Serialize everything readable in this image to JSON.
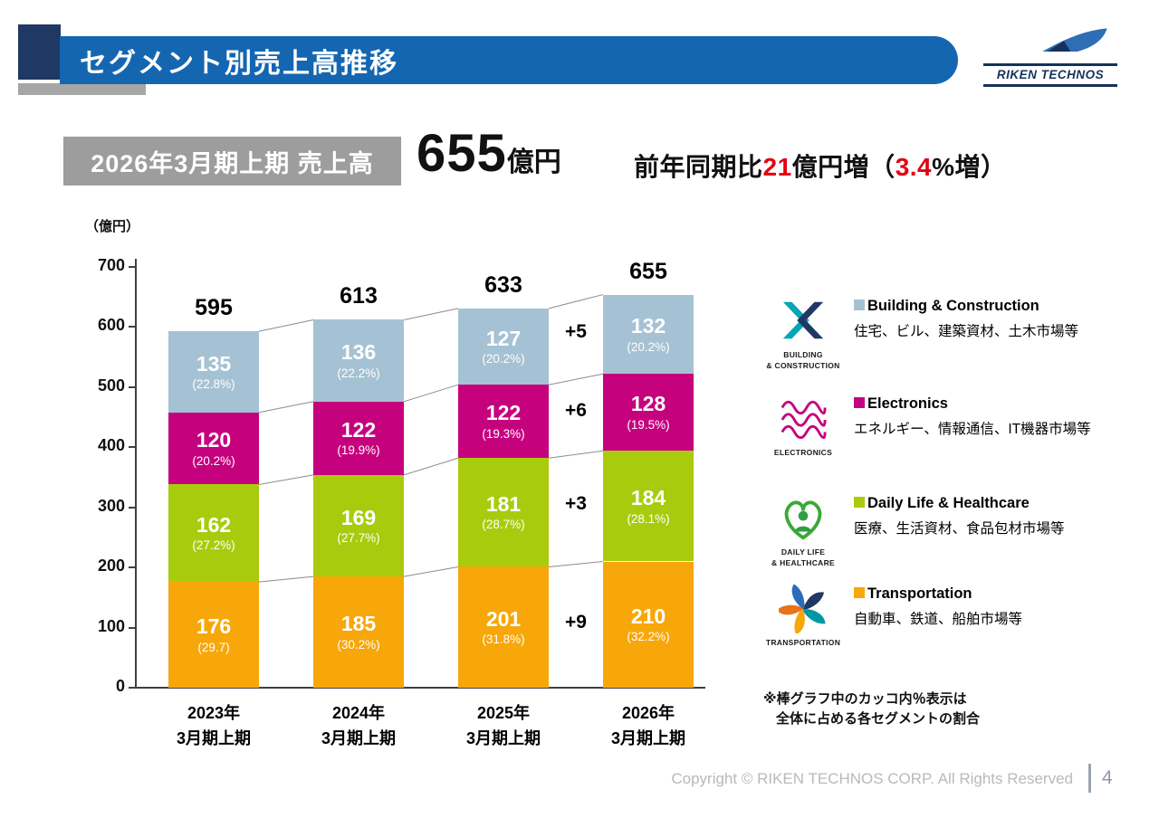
{
  "header": {
    "title": "セグメント別売上高推移"
  },
  "logo": {
    "brand": "RIKEN TECHNOS"
  },
  "summary": {
    "label": "2026年3月期上期 売上高",
    "value": "655",
    "unit": "億円",
    "comparison_prefix": "前年同期比",
    "comparison_value": "21",
    "comparison_mid": "億円増（",
    "comparison_pct": "3.4",
    "comparison_suffix": "%増）"
  },
  "chart_data": {
    "type": "bar",
    "stacked": true,
    "title": "セグメント別売上高推移",
    "unit_label": "（億円）",
    "ylim": [
      0,
      700
    ],
    "yticks": [
      0,
      100,
      200,
      300,
      400,
      500,
      600,
      700
    ],
    "categories": [
      [
        "2023年",
        "3月期上期"
      ],
      [
        "2024年",
        "3月期上期"
      ],
      [
        "2025年",
        "3月期上期"
      ],
      [
        "2026年",
        "3月期上期"
      ]
    ],
    "totals": [
      595,
      613,
      633,
      655
    ],
    "series_bottom_to_top": [
      {
        "name": "Transportation",
        "color": "#F7A70A",
        "values": [
          176,
          185,
          201,
          210
        ],
        "share_labels": [
          "(29.7)",
          "(30.2%)",
          "(31.8%)",
          "(32.2%)"
        ],
        "yoy_delta": "+9"
      },
      {
        "name": "Daily Life & Healthcare",
        "color": "#A9CB0E",
        "values": [
          162,
          169,
          181,
          184
        ],
        "share_labels": [
          "(27.2%)",
          "(27.7%)",
          "(28.7%)",
          "(28.1%)"
        ],
        "yoy_delta": "+3"
      },
      {
        "name": "Electronics",
        "color": "#C6017E",
        "values": [
          120,
          122,
          122,
          128
        ],
        "share_labels": [
          "(20.2%)",
          "(19.9%)",
          "(19.3%)",
          "(19.5%)"
        ],
        "yoy_delta": "+6"
      },
      {
        "name": "Building & Construction",
        "color": "#A5C2D4",
        "values": [
          135,
          136,
          127,
          132
        ],
        "share_labels": [
          "(22.8%)",
          "(22.2%)",
          "(20.2%)",
          "(20.2%)"
        ],
        "yoy_delta": "+5"
      }
    ]
  },
  "legend": {
    "items": [
      {
        "icon": "building-construction-icon",
        "icon_caption": "BUILDING\n& CONSTRUCTION",
        "marker_color": "#A5C2D4",
        "name": "Building & Construction",
        "desc": "住宅、ビル、建築資材、土木市場等"
      },
      {
        "icon": "electronics-icon",
        "icon_caption": "ELECTRONICS",
        "marker_color": "#C6017E",
        "name": "Electronics",
        "desc": "エネルギー、情報通信、IT機器市場等"
      },
      {
        "icon": "daily-life-healthcare-icon",
        "icon_caption": "DAILY LIFE\n& HEALTHCARE",
        "marker_color": "#A9CB0E",
        "name": "Daily Life & Healthcare",
        "desc": "医療、生活資材、食品包材市場等"
      },
      {
        "icon": "transportation-icon",
        "icon_caption": "TRANSPORTATION",
        "marker_color": "#F7A70A",
        "name": "Transportation",
        "desc": "自動車、鉄道、船舶市場等"
      }
    ]
  },
  "note": {
    "line1": "※棒グラフ中のカッコ内％表示は",
    "line2": "全体に占める各セグメントの割合"
  },
  "footer": {
    "copyright": "Copyright © RIKEN TECHNOS CORP. All Rights Reserved",
    "page": "4"
  }
}
